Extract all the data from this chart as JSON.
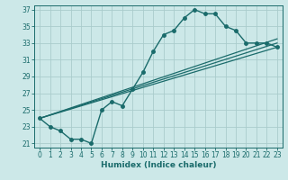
{
  "xlabel": "Humidex (Indice chaleur)",
  "bg_color": "#cce8e8",
  "grid_color": "#aacccc",
  "line_color": "#1a6b6b",
  "xlim": [
    -0.5,
    23.5
  ],
  "ylim": [
    20.5,
    37.5
  ],
  "xticks": [
    0,
    1,
    2,
    3,
    4,
    5,
    6,
    7,
    8,
    9,
    10,
    11,
    12,
    13,
    14,
    15,
    16,
    17,
    18,
    19,
    20,
    21,
    22,
    23
  ],
  "yticks": [
    21,
    23,
    25,
    27,
    29,
    31,
    33,
    35,
    37
  ],
  "series": [
    {
      "x": [
        0,
        1,
        2,
        3,
        4,
        5,
        6,
        7,
        8,
        9,
        10,
        11,
        12,
        13,
        14,
        15,
        16,
        17,
        18,
        19,
        20,
        21,
        22,
        23
      ],
      "y": [
        24,
        23,
        22.5,
        21.5,
        21.5,
        21,
        25,
        26,
        25.5,
        27.5,
        29.5,
        32,
        34,
        34.5,
        36,
        37,
        36.5,
        36.5,
        35,
        34.5,
        33,
        33,
        33,
        32.5
      ],
      "marker": "o",
      "markersize": 2.5,
      "linewidth": 1.0
    },
    {
      "x": [
        0,
        23
      ],
      "y": [
        24,
        32.5
      ],
      "marker": null,
      "markersize": 0,
      "linewidth": 0.9
    },
    {
      "x": [
        0,
        23
      ],
      "y": [
        24,
        33
      ],
      "marker": null,
      "markersize": 0,
      "linewidth": 0.9
    },
    {
      "x": [
        0,
        23
      ],
      "y": [
        24,
        33.5
      ],
      "marker": null,
      "markersize": 0,
      "linewidth": 0.9
    }
  ]
}
